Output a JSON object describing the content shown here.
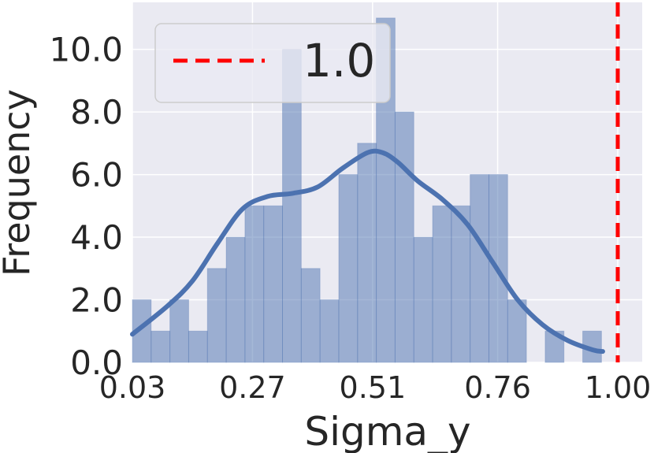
{
  "chart_data": {
    "type": "histogram",
    "xlabel": "Sigma_y",
    "ylabel": "Frequency",
    "xlim": [
      0.03,
      1.0
    ],
    "ylim": [
      0,
      11.5
    ],
    "x_ticks": [
      "0.03",
      "0.27",
      "0.51",
      "0.76",
      "1.00"
    ],
    "y_ticks": [
      "0.0",
      "2.0",
      "4.0",
      "6.0",
      "8.0",
      "10.0"
    ],
    "x_tick_values": [
      0.03,
      0.27,
      0.51,
      0.76,
      1.0
    ],
    "y_tick_values": [
      0,
      2,
      4,
      6,
      8,
      10
    ],
    "bins": {
      "start": 0.03,
      "width": 0.0375,
      "counts": [
        2,
        1,
        2,
        1,
        3,
        4,
        5,
        5,
        10,
        3,
        2,
        6,
        7,
        11,
        8,
        4,
        5,
        5,
        6,
        6,
        2,
        0,
        1,
        0,
        1
      ]
    },
    "kde": {
      "name": "kde",
      "x": [
        0.03,
        0.1,
        0.15,
        0.2,
        0.25,
        0.3,
        0.35,
        0.4,
        0.45,
        0.5,
        0.53,
        0.56,
        0.6,
        0.65,
        0.7,
        0.75,
        0.8,
        0.85,
        0.9,
        0.95,
        0.97
      ],
      "y": [
        0.9,
        1.8,
        2.6,
        3.8,
        4.9,
        5.3,
        5.4,
        5.6,
        6.2,
        6.7,
        6.7,
        6.4,
        5.8,
        5.2,
        4.4,
        3.2,
        2.0,
        1.2,
        0.7,
        0.4,
        0.35
      ]
    },
    "reference_line": {
      "x": 1.0,
      "label": "1.0",
      "color": "#ff0000"
    },
    "legend": {
      "placement": "top-left",
      "entries": [
        "1.0"
      ]
    },
    "grid": true,
    "colors": {
      "background": "#eaeaf2",
      "grid": "#ffffff",
      "bar_fill": "#4c72b0",
      "bar_opacity": 0.5,
      "kde_line": "#4c72b0"
    }
  }
}
